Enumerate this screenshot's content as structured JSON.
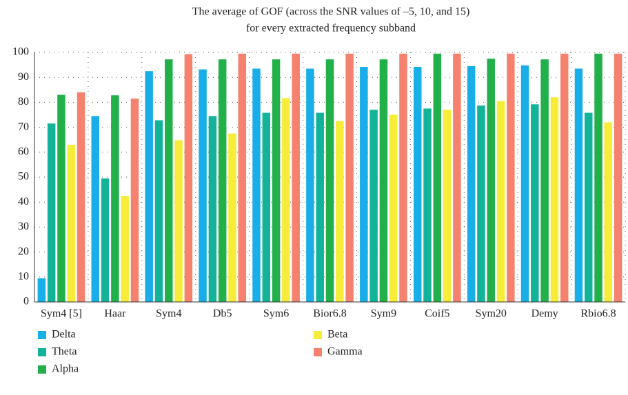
{
  "chart_data": {
    "type": "bar",
    "title": [
      "The average of GOF (across the SNR values of –5, 10, and 15)",
      "for every extracted frequency subband"
    ],
    "categories": [
      "Sym4 [5]",
      "Haar",
      "Sym4",
      "Db5",
      "Sym6",
      "Bior6.8",
      "Sym9",
      "Coif5",
      "Sym20",
      "Demy",
      "Rbio6.8"
    ],
    "series": [
      {
        "name": "Delta",
        "color": "#1aaee8",
        "values": [
          9.5,
          74.5,
          92.5,
          93.2,
          93.5,
          93.5,
          94.2,
          94.2,
          94.5,
          94.8,
          93.5
        ]
      },
      {
        "name": "Theta",
        "color": "#13b39a",
        "values": [
          71.5,
          49.5,
          72.8,
          74.5,
          75.8,
          75.8,
          77,
          77.5,
          78.7,
          79.2,
          75.8
        ]
      },
      {
        "name": "Alpha",
        "color": "#22b04b",
        "values": [
          83,
          82.8,
          97.2,
          97.2,
          97.2,
          97.2,
          97.2,
          99.5,
          97.5,
          97.2,
          99.5
        ]
      },
      {
        "name": "Beta",
        "color": "#f7ec3a",
        "values": [
          63,
          42.5,
          64.8,
          67.5,
          81.7,
          72.5,
          75,
          77,
          80.5,
          82,
          72
        ]
      },
      {
        "name": "Gamma",
        "color": "#f4826e",
        "values": [
          84,
          81.5,
          99.3,
          99.5,
          99.5,
          99.5,
          99.5,
          99.5,
          99.5,
          99.5,
          99.5
        ]
      }
    ],
    "ylim": [
      0,
      100
    ],
    "yticks": [
      0,
      10,
      20,
      30,
      40,
      50,
      60,
      70,
      80,
      90,
      100
    ],
    "grid": true,
    "legend": "bottom"
  }
}
